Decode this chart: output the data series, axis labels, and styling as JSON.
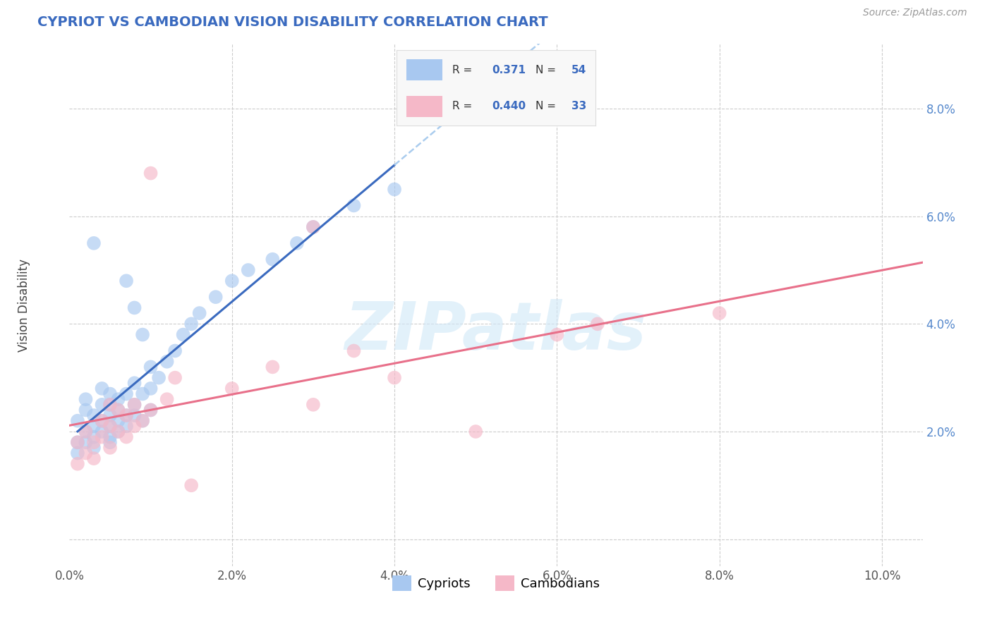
{
  "title": "CYPRIOT VS CAMBODIAN VISION DISABILITY CORRELATION CHART",
  "source": "Source: ZipAtlas.com",
  "ylabel": "Vision Disability",
  "xlim": [
    0.0,
    0.105
  ],
  "ylim": [
    -0.005,
    0.092
  ],
  "xticks": [
    0.0,
    0.02,
    0.04,
    0.06,
    0.08,
    0.1
  ],
  "xtick_labels": [
    "0.0%",
    "2.0%",
    "4.0%",
    "6.0%",
    "8.0%",
    "10.0%"
  ],
  "yticks": [
    0.0,
    0.02,
    0.04,
    0.06,
    0.08
  ],
  "ytick_labels": [
    "",
    "2.0%",
    "4.0%",
    "6.0%",
    "8.0%"
  ],
  "cypriot_color": "#a8c8f0",
  "cambodian_color": "#f5b8c8",
  "cypriot_R": 0.371,
  "cypriot_N": 54,
  "cambodian_R": 0.44,
  "cambodian_N": 33,
  "cypriot_line_color": "#3a6abf",
  "cambodian_line_color": "#e8708a",
  "cypriot_dashed_color": "#aaccee",
  "watermark": "ZIPatlas",
  "background_color": "#ffffff",
  "grid_color": "#cccccc",
  "title_color": "#3a6abf",
  "yaxis_color": "#5588cc",
  "legend_R_color": "#3a6abf",
  "cypriot_x": [
    0.001,
    0.001,
    0.001,
    0.002,
    0.002,
    0.002,
    0.002,
    0.003,
    0.003,
    0.003,
    0.003,
    0.004,
    0.004,
    0.004,
    0.004,
    0.005,
    0.005,
    0.005,
    0.005,
    0.005,
    0.005,
    0.006,
    0.006,
    0.006,
    0.006,
    0.007,
    0.007,
    0.007,
    0.008,
    0.008,
    0.008,
    0.009,
    0.009,
    0.01,
    0.01,
    0.01,
    0.011,
    0.012,
    0.013,
    0.014,
    0.015,
    0.016,
    0.018,
    0.02,
    0.022,
    0.025,
    0.028,
    0.03,
    0.035,
    0.04,
    0.007,
    0.008,
    0.009,
    0.003
  ],
  "cypriot_y": [
    0.018,
    0.022,
    0.016,
    0.02,
    0.024,
    0.018,
    0.026,
    0.019,
    0.023,
    0.021,
    0.017,
    0.022,
    0.025,
    0.02,
    0.028,
    0.021,
    0.025,
    0.019,
    0.023,
    0.027,
    0.018,
    0.022,
    0.026,
    0.02,
    0.024,
    0.023,
    0.027,
    0.021,
    0.025,
    0.029,
    0.023,
    0.027,
    0.022,
    0.028,
    0.024,
    0.032,
    0.03,
    0.033,
    0.035,
    0.038,
    0.04,
    0.042,
    0.045,
    0.048,
    0.05,
    0.052,
    0.055,
    0.058,
    0.062,
    0.065,
    0.048,
    0.043,
    0.038,
    0.055
  ],
  "cambodian_x": [
    0.001,
    0.001,
    0.002,
    0.002,
    0.003,
    0.003,
    0.004,
    0.004,
    0.005,
    0.005,
    0.005,
    0.006,
    0.006,
    0.007,
    0.007,
    0.008,
    0.008,
    0.009,
    0.01,
    0.01,
    0.012,
    0.013,
    0.015,
    0.02,
    0.025,
    0.03,
    0.035,
    0.04,
    0.05,
    0.06,
    0.065,
    0.08,
    0.03
  ],
  "cambodian_y": [
    0.014,
    0.018,
    0.016,
    0.02,
    0.018,
    0.015,
    0.019,
    0.022,
    0.017,
    0.021,
    0.025,
    0.02,
    0.024,
    0.019,
    0.023,
    0.021,
    0.025,
    0.022,
    0.024,
    0.068,
    0.026,
    0.03,
    0.01,
    0.028,
    0.032,
    0.025,
    0.035,
    0.03,
    0.02,
    0.038,
    0.04,
    0.042,
    0.058
  ]
}
